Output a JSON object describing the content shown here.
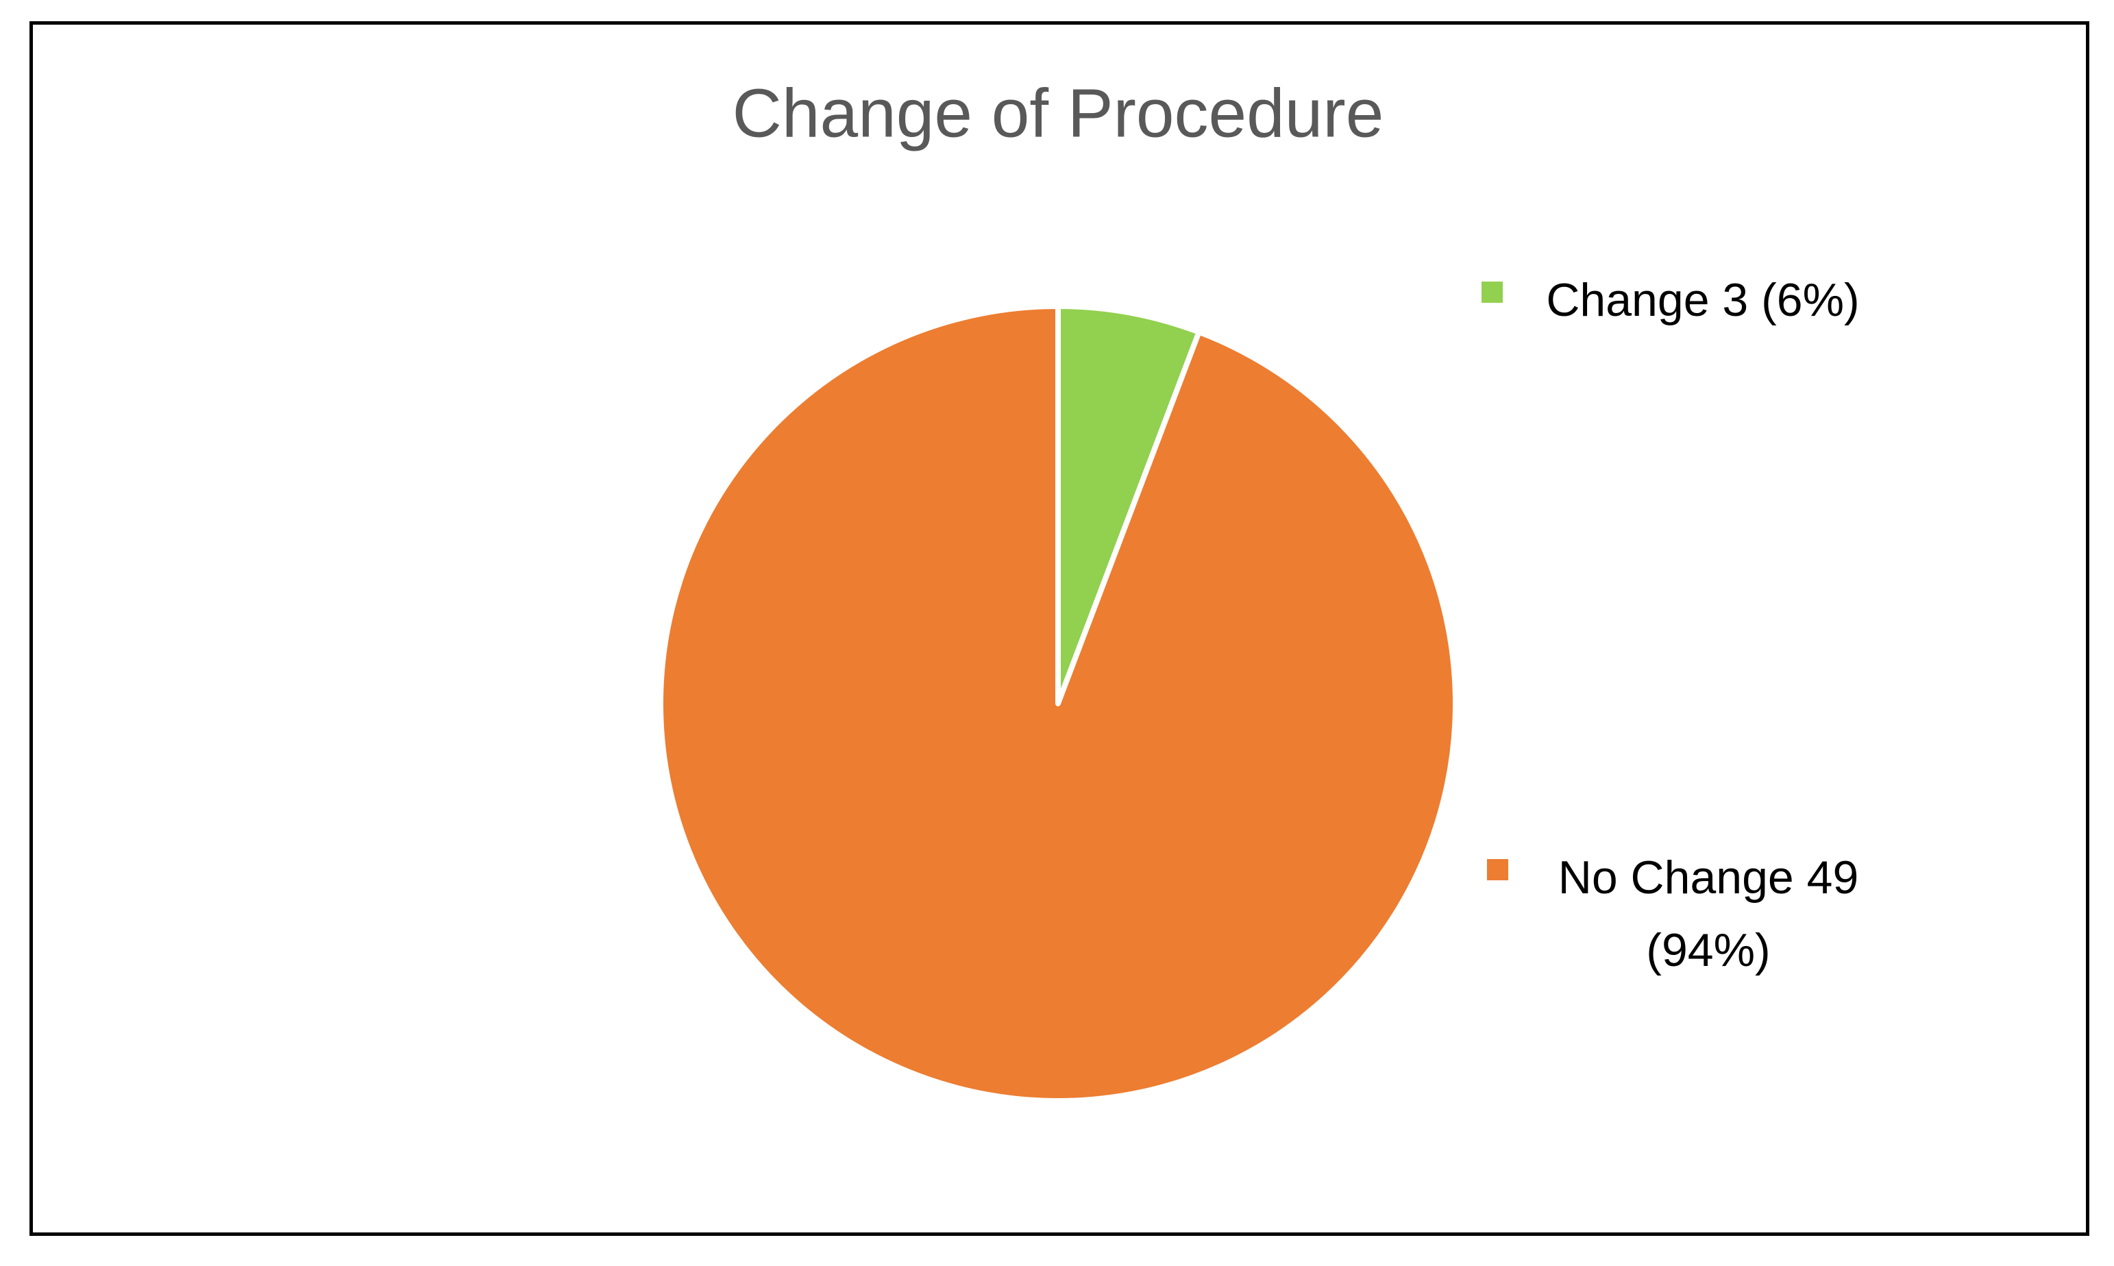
{
  "chart_data": {
    "type": "pie",
    "title": "Change of Procedure",
    "categories": [
      "Change 3 (6%)",
      "No Change 49 (94%)"
    ],
    "values": [
      3,
      49
    ],
    "colors": [
      "#92d050",
      "#ed7d31"
    ],
    "legend": "right"
  }
}
